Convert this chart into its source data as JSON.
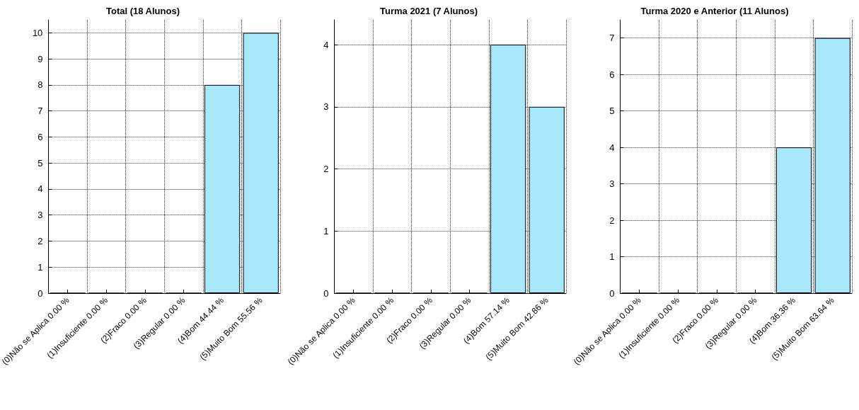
{
  "chart_data": [
    {
      "type": "bar",
      "title": "Total (18 Alunos)",
      "categories": [
        "(0)Não se Aplica 0.00 %",
        "(1)Insuficiente 0.00 %",
        "(2)Fraco 0.00 %",
        "(3)Regular 0.00 %",
        "(4)Bom 44.44 %",
        "(5)Muito Bom 55.56 %"
      ],
      "values": [
        0,
        0,
        0,
        0,
        8,
        10
      ],
      "color": "#a8e8fc",
      "ylim": [
        0,
        10.5
      ],
      "yticks": [
        0,
        1,
        2,
        3,
        4,
        5,
        6,
        7,
        8,
        9,
        10
      ],
      "grid": true
    },
    {
      "type": "bar",
      "title": "Turma 2021 (7 Alunos)",
      "categories": [
        "(0)Não se Aplica 0.00 %",
        "(1)Insuficiente 0.00 %",
        "(2)Fraco 0.00 %",
        "(3)Regular 0.00 %",
        "(4)Bom 57.14 %",
        "(5)Muito Bom 42.86 %"
      ],
      "values": [
        0,
        0,
        0,
        0,
        4,
        3
      ],
      "color": "#a8e8fc",
      "ylim": [
        0,
        4.4
      ],
      "yticks": [
        0,
        1,
        2,
        3,
        4
      ],
      "grid": true
    },
    {
      "type": "bar",
      "title": "Turma 2020 e Anterior (11 Alunos)",
      "categories": [
        "(0)Não se Aplica 0.00 %",
        "(1)Insuficiente 0.00 %",
        "(2)Fraco 0.00 %",
        "(3)Regular 0.00 %",
        "(4)Bom 36.36 %",
        "(5)Muito Bom 63.64 %"
      ],
      "values": [
        0,
        0,
        0,
        0,
        4,
        7
      ],
      "color": "#a8e8fc",
      "ylim": [
        0,
        7.5
      ],
      "yticks": [
        0,
        1,
        2,
        3,
        4,
        5,
        6,
        7
      ],
      "grid": true
    }
  ]
}
